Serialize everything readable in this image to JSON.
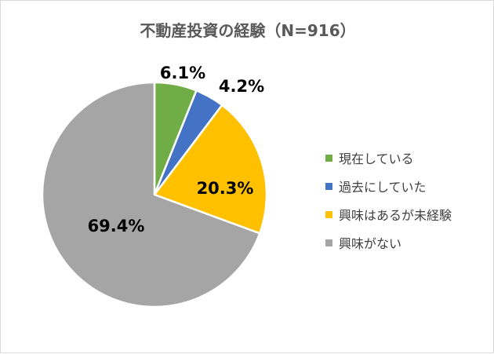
{
  "chart_data": {
    "type": "pie",
    "title": "不動産投資の経験（N=916）",
    "categories": [
      "現在している",
      "過去にしていた",
      "興味はあるが未経験",
      "興味がない"
    ],
    "values": [
      6.1,
      4.2,
      20.3,
      69.4
    ],
    "labels": [
      "6.1%",
      "4.2%",
      "20.3%",
      "69.4%"
    ],
    "colors": [
      "#70ad47",
      "#4472c4",
      "#ffc000",
      "#a5a5a5"
    ],
    "legend_position": "right"
  }
}
